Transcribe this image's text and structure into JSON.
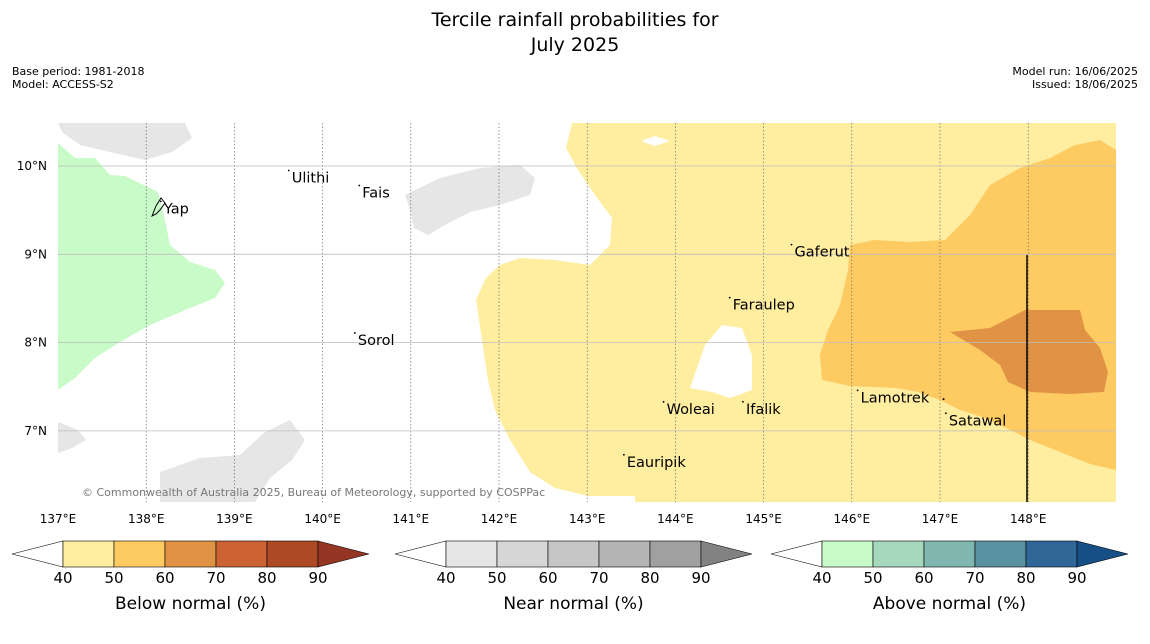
{
  "title": {
    "line1": "Tercile rainfall probabilities for",
    "line2": "July 2025"
  },
  "meta": {
    "base_period": "Base period: 1981-2018",
    "model": "Model: ACCESS-S2",
    "model_run": "Model run: 16/06/2025",
    "issued": "Issued: 18/06/2025"
  },
  "copyright": "© Commonwealth of Australia 2025, Bureau of Meteorology, supported by COSPPac",
  "map": {
    "lon_labels": [
      "137°E",
      "138°E",
      "139°E",
      "140°E",
      "141°E",
      "142°E",
      "143°E",
      "144°E",
      "145°E",
      "146°E",
      "147°E",
      "148°E"
    ],
    "lat_labels": [
      "10°N",
      "9°N",
      "8°N",
      "7°N"
    ],
    "places": [
      {
        "name": "Yap",
        "lon": 138.2,
        "lat": 9.52
      },
      {
        "name": "Ulithi",
        "lon": 139.65,
        "lat": 9.87
      },
      {
        "name": "Fais",
        "lon": 140.45,
        "lat": 9.7
      },
      {
        "name": "Sorol",
        "lon": 140.4,
        "lat": 8.03
      },
      {
        "name": "Gaferut",
        "lon": 145.35,
        "lat": 9.03
      },
      {
        "name": "Faraulep",
        "lon": 144.65,
        "lat": 8.43
      },
      {
        "name": "Woleai",
        "lon": 143.9,
        "lat": 7.25
      },
      {
        "name": "Ifalik",
        "lon": 144.8,
        "lat": 7.25
      },
      {
        "name": "Lamotrek",
        "lon": 146.1,
        "lat": 7.38
      },
      {
        "name": "Satawal",
        "lon": 147.1,
        "lat": 7.12
      },
      {
        "name": "Eauripik",
        "lon": 143.45,
        "lat": 6.65
      }
    ]
  },
  "colorbars": [
    {
      "label": "Below normal (%)",
      "ticks": [
        "40",
        "50",
        "60",
        "70",
        "80",
        "90"
      ],
      "colors": [
        "#ffeda0",
        "#fecb63",
        "#e09344",
        "#cd6333",
        "#ae4926",
        "#953524"
      ]
    },
    {
      "label": "Near normal (%)",
      "ticks": [
        "40",
        "50",
        "60",
        "70",
        "80",
        "90"
      ],
      "colors": [
        "#e6e6e6",
        "#d6d6d6",
        "#c6c6c6",
        "#b4b4b4",
        "#a0a0a0",
        "#828282"
      ]
    },
    {
      "label": "Above normal (%)",
      "ticks": [
        "40",
        "50",
        "60",
        "70",
        "80",
        "90"
      ],
      "colors": [
        "#c9fbc9",
        "#a6d8bd",
        "#80b7b0",
        "#5b92a2",
        "#2f6799",
        "#164e86"
      ]
    }
  ]
}
